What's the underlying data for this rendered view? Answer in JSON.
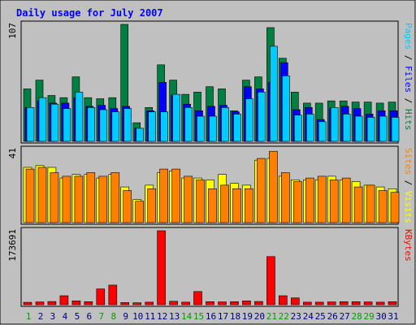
{
  "chart_data": {
    "type": "bar",
    "title": "Daily usage for July 2007",
    "categories": [
      "1",
      "2",
      "3",
      "4",
      "5",
      "6",
      "7",
      "8",
      "9",
      "10",
      "11",
      "12",
      "13",
      "14",
      "15",
      "16",
      "17",
      "18",
      "19",
      "20",
      "21",
      "22",
      "23",
      "24",
      "25",
      "26",
      "27",
      "28",
      "29",
      "30",
      "31"
    ],
    "weekend_days": [
      "1",
      "7",
      "8",
      "14",
      "15",
      "21",
      "22",
      "28",
      "29"
    ],
    "panels": [
      {
        "id": "hits",
        "y_max_label": "107",
        "ylim": [
          0,
          107
        ],
        "right_label_parts": [
          {
            "text": "Pages",
            "color": "#00ccff"
          },
          {
            "text": " / ",
            "color": "#000000"
          },
          {
            "text": "Files",
            "color": "#0000ff"
          },
          {
            "text": " / ",
            "color": "#000000"
          },
          {
            "text": "Hits",
            "color": "#008040"
          }
        ],
        "series": [
          {
            "name": "Hits",
            "color": "#008040",
            "values": [
              48,
              56,
              42,
              40,
              59,
              40,
              39,
              40,
              107,
              17,
              31,
              70,
              56,
              43,
              45,
              50,
              48,
              28,
              56,
              59,
              104,
              76,
              45,
              35,
              35,
              37,
              37,
              36,
              36,
              35,
              36
            ]
          },
          {
            "name": "Files",
            "color": "#0000ff",
            "values": [
              31,
              37,
              35,
              35,
              40,
              32,
              33,
              30,
              32,
              12,
              28,
              54,
              42,
              34,
              28,
              32,
              33,
              27,
              50,
              48,
              54,
              72,
              29,
              31,
              20,
              30,
              32,
              30,
              25,
              28,
              28
            ]
          },
          {
            "name": "Pages",
            "color": "#00ccff",
            "values": [
              31,
              40,
              34,
              30,
              45,
              31,
              29,
              27,
              30,
              12,
              27,
              27,
              43,
              31,
              23,
              23,
              31,
              25,
              39,
              45,
              87,
              60,
              24,
              25,
              18,
              31,
              25,
              23,
              22,
              23,
              22
            ]
          }
        ]
      },
      {
        "id": "visits",
        "y_max_label": "41",
        "ylim": [
          0,
          41
        ],
        "right_label_parts": [
          {
            "text": "Sites",
            "color": "#ff8000"
          },
          {
            "text": " / ",
            "color": "#000000"
          },
          {
            "text": "Visits",
            "color": "#ffff00"
          }
        ],
        "series": [
          {
            "name": "Visits",
            "color": "#ffff00",
            "values": [
              31,
              32,
              31,
              25,
              27,
              27,
              25,
              27,
              20,
              13,
              21,
              28,
              29,
              25,
              25,
              24,
              27,
              22,
              21,
              35,
              36,
              26,
              24,
              24,
              24,
              26,
              24,
              23,
              21,
              20,
              19
            ]
          },
          {
            "name": "Sites",
            "color": "#ff8000",
            "values": [
              30,
              31,
              28,
              26,
              26,
              28,
              26,
              28,
              18,
              12,
              19,
              30,
              30,
              26,
              24,
              19,
              21,
              19,
              19,
              36,
              40,
              28,
              23,
              25,
              26,
              24,
              25,
              20,
              21,
              18,
              17
            ]
          }
        ]
      },
      {
        "id": "kbytes",
        "y_max_label": "173691",
        "ylim": [
          0,
          173691
        ],
        "right_label_parts": [
          {
            "text": "KBytes",
            "color": "#ff0000"
          }
        ],
        "series": [
          {
            "name": "KBytes",
            "color": "#ff0000",
            "values": [
              5500,
              6500,
              7500,
              21000,
              9000,
              7000,
              37000,
              46000,
              5000,
              4500,
              6000,
              173691,
              8000,
              6000,
              31000,
              7000,
              6500,
              7000,
              9000,
              7500,
              113000,
              21000,
              16000,
              6000,
              6000,
              6500,
              7000,
              7000,
              6500,
              6000,
              7000
            ]
          }
        ]
      }
    ],
    "colors": {
      "background": "#c0c0c0",
      "title": "#0000ff",
      "weekday_label": "#000080",
      "weekend_label": "#00a000"
    }
  }
}
